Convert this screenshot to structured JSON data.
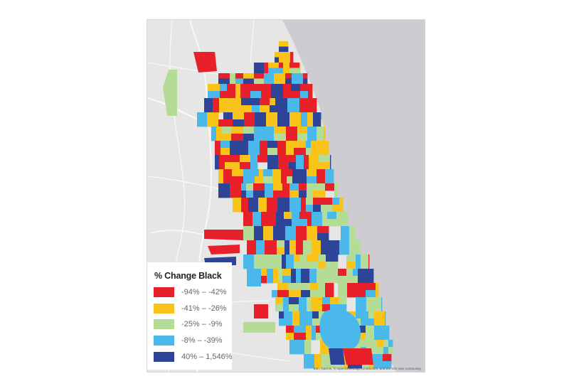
{
  "legend": {
    "title": "% Change Black",
    "items": [
      {
        "label": "-94% – -42%",
        "color": "#e8202a"
      },
      {
        "label": "-41% – -26%",
        "color": "#f9c31a"
      },
      {
        "label": "-25% – -9%",
        "color": "#b4dc96"
      },
      {
        "label": "-8% – -39%",
        "color": "#4bb8ec"
      },
      {
        "label": "40% – 1,546%",
        "color": "#2e4597"
      }
    ]
  },
  "attribution": "Esri, Garmin, © OpenStreetMap contributors, and the GIS user community",
  "colors": {
    "lake": "#cdcdd1",
    "land": "#e6e6e6",
    "road": "#f8f8f8"
  }
}
